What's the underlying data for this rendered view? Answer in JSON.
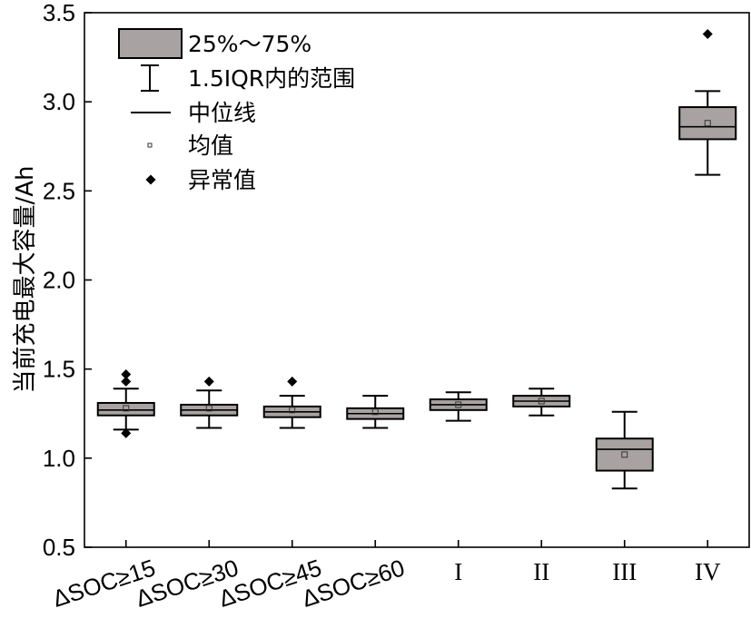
{
  "chart_data": {
    "type": "box",
    "ylabel": "当前充电最大容量/Ah",
    "ylim": [
      0.5,
      3.5
    ],
    "yticks": [
      "0.5",
      "1.0",
      "1.5",
      "2.0",
      "2.5",
      "3.0",
      "3.5"
    ],
    "categories": [
      "ΔSOC≥15",
      "ΔSOC≥30",
      "ΔSOC≥45",
      "ΔSOC≥60",
      "I",
      "II",
      "III",
      "IV"
    ],
    "boxes": [
      {
        "category": "ΔSOC≥15",
        "whisker_low": 1.16,
        "q1": 1.24,
        "median": 1.27,
        "mean": 1.28,
        "q3": 1.31,
        "whisker_high": 1.39,
        "outliers": [
          1.14,
          1.43,
          1.47
        ]
      },
      {
        "category": "ΔSOC≥30",
        "whisker_low": 1.17,
        "q1": 1.24,
        "median": 1.27,
        "mean": 1.28,
        "q3": 1.3,
        "whisker_high": 1.38,
        "outliers": [
          1.43
        ]
      },
      {
        "category": "ΔSOC≥45",
        "whisker_low": 1.17,
        "q1": 1.23,
        "median": 1.26,
        "mean": 1.27,
        "q3": 1.29,
        "whisker_high": 1.35,
        "outliers": [
          1.43
        ]
      },
      {
        "category": "ΔSOC≥60",
        "whisker_low": 1.17,
        "q1": 1.22,
        "median": 1.25,
        "mean": 1.26,
        "q3": 1.28,
        "whisker_high": 1.35,
        "outliers": []
      },
      {
        "category": "I",
        "whisker_low": 1.21,
        "q1": 1.27,
        "median": 1.3,
        "mean": 1.3,
        "q3": 1.33,
        "whisker_high": 1.37,
        "outliers": []
      },
      {
        "category": "II",
        "whisker_low": 1.24,
        "q1": 1.29,
        "median": 1.32,
        "mean": 1.32,
        "q3": 1.35,
        "whisker_high": 1.39,
        "outliers": []
      },
      {
        "category": "III",
        "whisker_low": 0.83,
        "q1": 0.93,
        "median": 1.05,
        "mean": 1.02,
        "q3": 1.11,
        "whisker_high": 1.26,
        "outliers": []
      },
      {
        "category": "IV",
        "whisker_low": 2.59,
        "q1": 2.79,
        "median": 2.86,
        "mean": 2.88,
        "q3": 2.97,
        "whisker_high": 3.06,
        "outliers": [
          3.38
        ]
      }
    ],
    "legend": {
      "placement": "top-left",
      "entries": [
        {
          "key": "box",
          "label": "25%～75%"
        },
        {
          "key": "whisker",
          "label": "1.5IQR内的范围"
        },
        {
          "key": "median",
          "label": "中位线"
        },
        {
          "key": "mean",
          "label": "均值"
        },
        {
          "key": "outlier",
          "label": "异常值"
        }
      ]
    },
    "colors": {
      "box_fill": "#a9a2a2",
      "line": "#000000"
    },
    "grid": false
  }
}
